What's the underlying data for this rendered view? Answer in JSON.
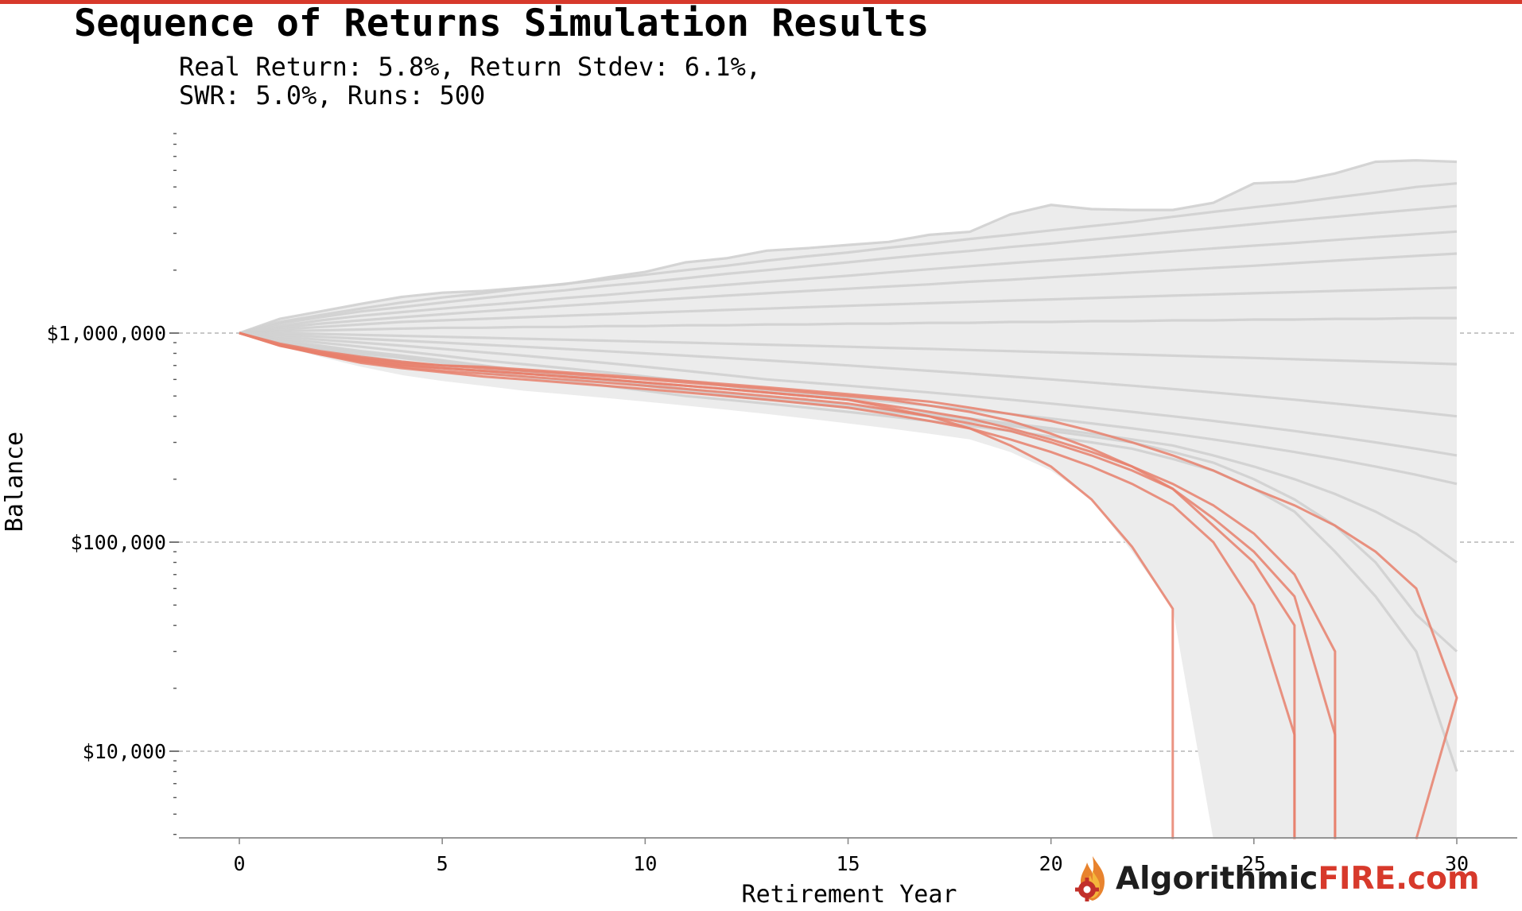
{
  "header": {
    "title": "Sequence of Returns Simulation Results",
    "subtitle_line1": "Real Return: 5.8%, Return Stdev: 6.1%,",
    "subtitle_line2": "SWR: 5.0%, Runs: 500"
  },
  "brand": {
    "part1": "Algorithmic",
    "part2": "FIRE.com",
    "icon": "flame-gear-logo-icon"
  },
  "colors": {
    "accent": "#d7392b",
    "survivors": "#d0d0d0",
    "failures": "#e8806c",
    "band": "#ececec"
  },
  "chart_data": {
    "type": "line",
    "title": "Sequence of Returns Simulation Results",
    "xlabel": "Retirement Year",
    "ylabel": "Balance",
    "xlim": [
      -1.5,
      31.5
    ],
    "ylim": [
      3800,
      9500000
    ],
    "yscale": "log",
    "xticks": [
      0,
      5,
      10,
      15,
      20,
      25,
      30
    ],
    "xtick_labels": [
      "0",
      "5",
      "10",
      "15",
      "20",
      "25",
      "30"
    ],
    "yticks": [
      10000,
      100000,
      1000000
    ],
    "ytick_labels": [
      "$10,000",
      "$100,000",
      "$1,000,000"
    ],
    "grid": "y-major-dashed",
    "runs": 500,
    "real_return_pct": 5.8,
    "return_stdev_pct": 6.1,
    "swr_pct": 5.0,
    "envelope": {
      "x": [
        0,
        1,
        2,
        3,
        4,
        5,
        6,
        7,
        8,
        9,
        10,
        11,
        12,
        13,
        14,
        15,
        16,
        17,
        18,
        19,
        20,
        21,
        22,
        23,
        24,
        25,
        26,
        27,
        28,
        29,
        30
      ],
      "upper": [
        1000000,
        1170000,
        1270000,
        1380000,
        1490000,
        1560000,
        1590000,
        1650000,
        1710000,
        1840000,
        1960000,
        2180000,
        2280000,
        2480000,
        2550000,
        2640000,
        2730000,
        2950000,
        3050000,
        3700000,
        4100000,
        3920000,
        3880000,
        3880000,
        4200000,
        5200000,
        5300000,
        5800000,
        6600000,
        6700000,
        6600000
      ],
      "lower": [
        1000000,
        870000,
        770000,
        690000,
        630000,
        590000,
        560000,
        530000,
        510000,
        490000,
        470000,
        450000,
        430000,
        410000,
        390000,
        370000,
        350000,
        330000,
        310000,
        270000,
        220000,
        160000,
        90000,
        48000,
        3800,
        3800,
        3800,
        3800,
        3800,
        3800,
        3800
      ]
    },
    "series": [
      {
        "group": "survived",
        "values": [
          1000000,
          1170000,
          1270000,
          1380000,
          1490000,
          1560000,
          1590000,
          1650000,
          1710000,
          1840000,
          1960000,
          2180000,
          2280000,
          2480000,
          2550000,
          2640000,
          2730000,
          2950000,
          3050000,
          3700000,
          4100000,
          3920000,
          3880000,
          3880000,
          4200000,
          5200000,
          5300000,
          5800000,
          6600000,
          6700000,
          6600000
        ]
      },
      {
        "group": "survived",
        "values": [
          1000000,
          1130000,
          1220000,
          1310000,
          1400000,
          1480000,
          1550000,
          1640000,
          1720000,
          1800000,
          1900000,
          2000000,
          2100000,
          2220000,
          2330000,
          2430000,
          2560000,
          2680000,
          2820000,
          2950000,
          3100000,
          3250000,
          3400000,
          3600000,
          3800000,
          4000000,
          4200000,
          4450000,
          4700000,
          5000000,
          5200000
        ]
      },
      {
        "group": "survived",
        "values": [
          1000000,
          1110000,
          1190000,
          1270000,
          1330000,
          1400000,
          1470000,
          1540000,
          1600000,
          1680000,
          1750000,
          1830000,
          1920000,
          2000000,
          2090000,
          2180000,
          2280000,
          2380000,
          2470000,
          2580000,
          2680000,
          2800000,
          2920000,
          3050000,
          3180000,
          3320000,
          3460000,
          3600000,
          3750000,
          3900000,
          4050000
        ]
      },
      {
        "group": "survived",
        "values": [
          1000000,
          1080000,
          1150000,
          1210000,
          1260000,
          1310000,
          1360000,
          1410000,
          1470000,
          1520000,
          1580000,
          1640000,
          1700000,
          1760000,
          1820000,
          1880000,
          1950000,
          2020000,
          2090000,
          2160000,
          2230000,
          2300000,
          2380000,
          2460000,
          2540000,
          2620000,
          2700000,
          2790000,
          2880000,
          2970000,
          3060000
        ]
      },
      {
        "group": "survived",
        "values": [
          1000000,
          1060000,
          1110000,
          1150000,
          1190000,
          1230000,
          1270000,
          1310000,
          1350000,
          1390000,
          1430000,
          1470000,
          1510000,
          1550000,
          1590000,
          1630000,
          1670000,
          1710000,
          1760000,
          1800000,
          1850000,
          1900000,
          1950000,
          2000000,
          2050000,
          2100000,
          2160000,
          2220000,
          2280000,
          2340000,
          2400000
        ]
      },
      {
        "group": "survived",
        "values": [
          1000000,
          1040000,
          1070000,
          1100000,
          1130000,
          1150000,
          1170000,
          1190000,
          1210000,
          1230000,
          1250000,
          1270000,
          1290000,
          1310000,
          1330000,
          1350000,
          1370000,
          1390000,
          1410000,
          1430000,
          1450000,
          1470000,
          1490000,
          1510000,
          1530000,
          1550000,
          1570000,
          1590000,
          1610000,
          1630000,
          1650000
        ]
      },
      {
        "group": "survived",
        "values": [
          1000000,
          1020000,
          1030000,
          1040000,
          1050000,
          1060000,
          1060000,
          1070000,
          1070000,
          1080000,
          1080000,
          1090000,
          1090000,
          1100000,
          1100000,
          1110000,
          1110000,
          1120000,
          1120000,
          1130000,
          1130000,
          1140000,
          1140000,
          1150000,
          1150000,
          1160000,
          1160000,
          1170000,
          1170000,
          1180000,
          1180000
        ]
      },
      {
        "group": "survived",
        "values": [
          1000000,
          1000000,
          990000,
          980000,
          970000,
          960000,
          950000,
          940000,
          930000,
          920000,
          910000,
          900000,
          890000,
          880000,
          870000,
          860000,
          850000,
          840000,
          830000,
          820000,
          810000,
          800000,
          790000,
          780000,
          770000,
          760000,
          750000,
          740000,
          730000,
          720000,
          710000
        ]
      },
      {
        "group": "survived",
        "values": [
          1000000,
          980000,
          960000,
          940000,
          920000,
          900000,
          880000,
          860000,
          840000,
          820000,
          800000,
          780000,
          760000,
          740000,
          720000,
          700000,
          680000,
          660000,
          640000,
          620000,
          600000,
          580000,
          560000,
          540000,
          520000,
          500000,
          480000,
          460000,
          440000,
          420000,
          400000
        ]
      },
      {
        "group": "survived",
        "values": [
          1000000,
          960000,
          930000,
          900000,
          870000,
          840000,
          810000,
          780000,
          750000,
          720000,
          690000,
          660000,
          630000,
          600000,
          580000,
          560000,
          540000,
          520000,
          500000,
          480000,
          460000,
          440000,
          420000,
          400000,
          380000,
          360000,
          340000,
          320000,
          300000,
          280000,
          260000
        ]
      },
      {
        "group": "survived",
        "values": [
          1000000,
          940000,
          900000,
          860000,
          820000,
          780000,
          740000,
          710000,
          680000,
          650000,
          620000,
          590000,
          560000,
          530000,
          510000,
          490000,
          470000,
          450000,
          430000,
          410000,
          390000,
          370000,
          350000,
          330000,
          310000,
          290000,
          270000,
          250000,
          230000,
          210000,
          190000
        ]
      },
      {
        "group": "survived",
        "values": [
          1000000,
          920000,
          870000,
          820000,
          780000,
          740000,
          700000,
          660000,
          630000,
          600000,
          570000,
          540000,
          510000,
          490000,
          470000,
          450000,
          430000,
          410000,
          390000,
          370000,
          350000,
          330000,
          310000,
          290000,
          260000,
          230000,
          200000,
          170000,
          140000,
          110000,
          80000
        ]
      },
      {
        "group": "survived",
        "values": [
          1000000,
          900000,
          850000,
          800000,
          760000,
          720000,
          680000,
          650000,
          620000,
          590000,
          560000,
          530000,
          500000,
          480000,
          460000,
          440000,
          420000,
          400000,
          380000,
          360000,
          340000,
          320000,
          300000,
          270000,
          240000,
          200000,
          160000,
          120000,
          80000,
          45000,
          30000
        ]
      },
      {
        "group": "survived",
        "values": [
          1000000,
          890000,
          830000,
          780000,
          730000,
          690000,
          650000,
          620000,
          590000,
          560000,
          530000,
          500000,
          480000,
          460000,
          440000,
          420000,
          400000,
          380000,
          360000,
          340000,
          320000,
          300000,
          280000,
          250000,
          220000,
          180000,
          140000,
          90000,
          55000,
          30000,
          8000
        ]
      },
      {
        "group": "failed",
        "values": [
          1000000,
          870000,
          800000,
          740000,
          700000,
          680000,
          660000,
          640000,
          620000,
          600000,
          580000,
          560000,
          540000,
          520000,
          500000,
          480000,
          440000,
          400000,
          350000,
          290000,
          230000,
          160000,
          95000,
          48000,
          null,
          null,
          null,
          null,
          null,
          null,
          null
        ],
        "drop_to": 3800,
        "drop_at": 23
      },
      {
        "group": "failed",
        "values": [
          1000000,
          880000,
          810000,
          760000,
          720000,
          700000,
          680000,
          660000,
          640000,
          620000,
          600000,
          580000,
          560000,
          540000,
          520000,
          500000,
          480000,
          450000,
          420000,
          380000,
          330000,
          280000,
          230000,
          180000,
          120000,
          80000,
          40000,
          null,
          null,
          null,
          null
        ],
        "drop_to": 3800,
        "drop_at": 26
      },
      {
        "group": "failed",
        "values": [
          1000000,
          875000,
          790000,
          730000,
          690000,
          660000,
          640000,
          620000,
          600000,
          580000,
          560000,
          540000,
          520000,
          500000,
          480000,
          460000,
          430000,
          400000,
          370000,
          340000,
          300000,
          260000,
          220000,
          180000,
          130000,
          90000,
          55000,
          12000,
          null,
          null,
          null
        ],
        "drop_to": 3800,
        "drop_at": 27
      },
      {
        "group": "failed",
        "values": [
          1000000,
          890000,
          820000,
          770000,
          730000,
          700000,
          690000,
          670000,
          650000,
          630000,
          610000,
          590000,
          570000,
          550000,
          530000,
          510000,
          490000,
          470000,
          440000,
          410000,
          380000,
          340000,
          300000,
          260000,
          220000,
          180000,
          150000,
          120000,
          90000,
          60000,
          18000
        ],
        "drop_to": 3800,
        "drop_at": 29
      },
      {
        "group": "failed",
        "values": [
          1000000,
          870000,
          790000,
          720000,
          680000,
          650000,
          620000,
          600000,
          580000,
          560000,
          540000,
          520000,
          500000,
          480000,
          460000,
          440000,
          410000,
          380000,
          350000,
          310000,
          270000,
          230000,
          190000,
          150000,
          100000,
          50000,
          12000,
          null,
          null,
          null,
          null
        ],
        "drop_to": 3800,
        "drop_at": 26
      },
      {
        "group": "failed",
        "values": [
          1000000,
          880000,
          800000,
          750000,
          710000,
          680000,
          660000,
          640000,
          620000,
          600000,
          580000,
          560000,
          540000,
          520000,
          500000,
          480000,
          450000,
          420000,
          390000,
          350000,
          310000,
          270000,
          230000,
          190000,
          150000,
          110000,
          70000,
          30000,
          null,
          null,
          null
        ],
        "drop_to": 3800,
        "drop_at": 27
      }
    ]
  }
}
